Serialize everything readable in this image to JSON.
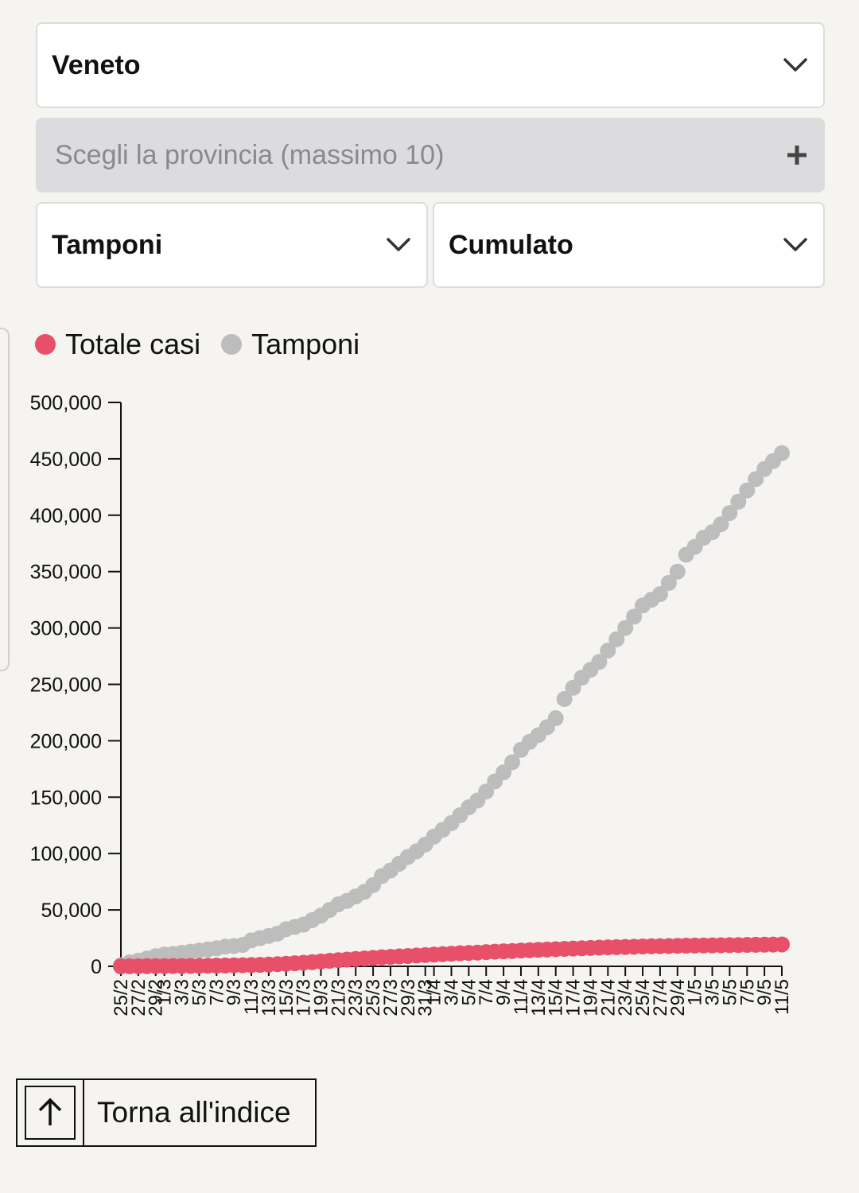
{
  "filters": {
    "region": {
      "value": "Veneto",
      "icon": "chevron-down-icon"
    },
    "province": {
      "placeholder": "Scegli la provincia (massimo 10)",
      "icon": "plus-icon"
    },
    "metric": {
      "value": "Tamponi",
      "icon": "chevron-down-icon"
    },
    "mode": {
      "value": "Cumulato",
      "icon": "chevron-down-icon"
    }
  },
  "legend": [
    {
      "label": "Totale casi",
      "color": "#e8506a"
    },
    {
      "label": "Tamponi",
      "color": "#bdbdbd"
    }
  ],
  "back_link": {
    "label": "Torna all'indice",
    "icon": "arrow-up-icon"
  },
  "chart_data": {
    "type": "scatter",
    "title": "",
    "xlabel": "",
    "ylabel": "",
    "ylim": [
      0,
      500000
    ],
    "y_ticks": [
      0,
      50000,
      100000,
      150000,
      200000,
      250000,
      300000,
      350000,
      400000,
      450000,
      500000
    ],
    "y_tick_labels": [
      "0",
      "50,000",
      "100,000",
      "150,000",
      "200,000",
      "250,000",
      "300,000",
      "350,000",
      "400,000",
      "450,000",
      "500,000"
    ],
    "x_tick_labels": [
      "25/2",
      "27/2",
      "29/2",
      "1/3",
      "3/3",
      "5/3",
      "7/3",
      "9/3",
      "11/3",
      "13/3",
      "15/3",
      "17/3",
      "19/3",
      "21/3",
      "23/3",
      "25/3",
      "27/3",
      "29/3",
      "31/3",
      "1/4",
      "3/4",
      "5/4",
      "7/4",
      "9/4",
      "11/4",
      "13/4",
      "15/4",
      "17/4",
      "19/4",
      "21/4",
      "23/4",
      "25/4",
      "27/4",
      "29/4",
      "1/5",
      "3/5",
      "5/5",
      "7/5",
      "9/5",
      "11/5"
    ],
    "x": [
      "25/2",
      "26/2",
      "27/2",
      "28/2",
      "29/2",
      "1/3",
      "2/3",
      "3/3",
      "4/3",
      "5/3",
      "6/3",
      "7/3",
      "8/3",
      "9/3",
      "10/3",
      "11/3",
      "12/3",
      "13/3",
      "14/3",
      "15/3",
      "16/3",
      "17/3",
      "18/3",
      "19/3",
      "20/3",
      "21/3",
      "22/3",
      "23/3",
      "24/3",
      "25/3",
      "26/3",
      "27/3",
      "28/3",
      "29/3",
      "30/3",
      "31/3",
      "1/4",
      "2/4",
      "3/4",
      "4/4",
      "5/4",
      "6/4",
      "7/4",
      "8/4",
      "9/4",
      "10/4",
      "11/4",
      "12/4",
      "13/4",
      "14/4",
      "15/4",
      "16/4",
      "17/4",
      "18/4",
      "19/4",
      "20/4",
      "21/4",
      "22/4",
      "23/4",
      "24/4",
      "25/4",
      "26/4",
      "27/4",
      "28/4",
      "29/4",
      "30/4",
      "1/5",
      "2/5",
      "3/5",
      "4/5",
      "5/5",
      "6/5",
      "7/5",
      "8/5",
      "9/5",
      "10/5",
      "11/5"
    ],
    "series": [
      {
        "name": "Tamponi",
        "color": "#bdbdbd",
        "values": [
          1000,
          3500,
          5000,
          7000,
          9000,
          10500,
          11000,
          12000,
          13000,
          14000,
          15000,
          16000,
          17500,
          18000,
          19000,
          23000,
          25000,
          27000,
          29000,
          33000,
          35000,
          37000,
          41000,
          45000,
          50000,
          55000,
          58000,
          62000,
          66000,
          72000,
          80000,
          85000,
          91000,
          97000,
          102000,
          108000,
          115000,
          121000,
          127000,
          134000,
          141000,
          147000,
          155000,
          164000,
          172000,
          181000,
          192000,
          199000,
          205000,
          212000,
          220000,
          237000,
          247000,
          256000,
          263000,
          270000,
          280000,
          290000,
          300000,
          310000,
          320000,
          325000,
          330000,
          340000,
          350000,
          365000,
          372000,
          380000,
          385000,
          392000,
          402000,
          412000,
          422000,
          432000,
          441000,
          448000,
          455000
        ]
      },
      {
        "name": "Totale casi",
        "color": "#e8506a",
        "values": [
          30,
          60,
          100,
          150,
          190,
          200,
          260,
          300,
          370,
          400,
          500,
          600,
          700,
          850,
          1000,
          1150,
          1350,
          1600,
          1900,
          2300,
          2700,
          3200,
          3700,
          4300,
          4900,
          5500,
          6000,
          6500,
          7000,
          7500,
          8000,
          8400,
          8800,
          9200,
          9600,
          10000,
          10400,
          10800,
          11200,
          11600,
          11900,
          12200,
          12600,
          13000,
          13300,
          13600,
          14000,
          14300,
          14600,
          14900,
          15200,
          15500,
          15800,
          16000,
          16300,
          16600,
          16800,
          17000,
          17200,
          17400,
          17600,
          17800,
          17900,
          18000,
          18200,
          18300,
          18400,
          18500,
          18600,
          18700,
          18800,
          18900,
          19000,
          19100,
          19200,
          19300,
          19400
        ]
      }
    ],
    "legend_position": "top-left",
    "grid": false
  }
}
